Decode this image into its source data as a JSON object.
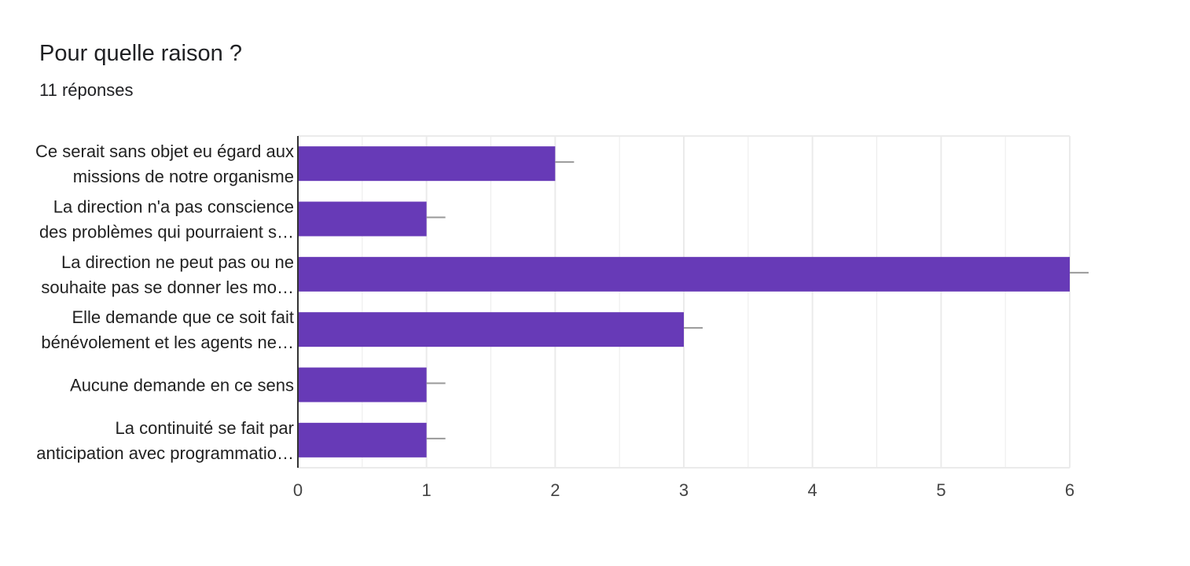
{
  "header": {
    "title": "Pour quelle raison ?",
    "subtitle": "11 réponses"
  },
  "colors": {
    "bar": "#673ab7",
    "grid": "#ebebeb",
    "axis": "#333333",
    "whisker": "#999999"
  },
  "chart_data": {
    "type": "bar",
    "orientation": "horizontal",
    "title": "Pour quelle raison ?",
    "categories": [
      [
        "Ce serait sans objet eu égard aux",
        "missions de notre organisme"
      ],
      [
        "La direction n'a pas conscience",
        "des problèmes qui pourraient s…"
      ],
      [
        "La direction ne peut pas ou ne",
        "souhaite pas se donner les mo…"
      ],
      [
        "Elle demande que ce soit fait",
        "bénévolement et les agents ne…"
      ],
      [
        "Aucune demande en ce sens"
      ],
      [
        "La continuité se fait par",
        "anticipation avec programmatio…"
      ]
    ],
    "values": [
      2,
      1,
      6,
      3,
      1,
      1
    ],
    "xlim": [
      0,
      6
    ],
    "xticks": [
      "0",
      "1",
      "2",
      "3",
      "4",
      "5",
      "6"
    ],
    "grid": true
  }
}
